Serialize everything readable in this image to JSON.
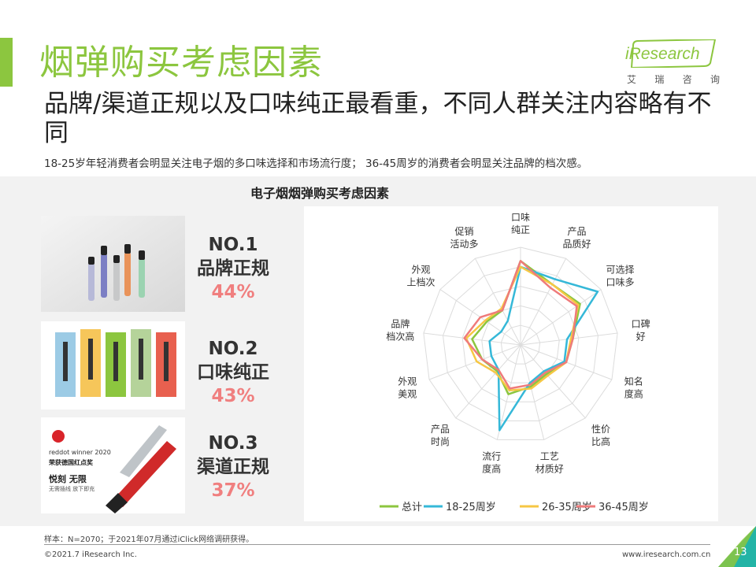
{
  "header": {
    "title": "烟弹购买考虑因素",
    "subtitle": "品牌/渠道正规以及口味纯正最看重，不同人群关注内容略有不同",
    "description": "18-25岁年轻消费者会明显关注电子烟的多口味选择和市场流行度；  36-45周岁的消费者会明显关注品牌的档次感。"
  },
  "logo": {
    "text": "iResearch",
    "cn": [
      "艾",
      "瑞",
      "咨",
      "询"
    ]
  },
  "ranks": [
    {
      "no": "NO.1",
      "name": "品牌正规",
      "pct": "44%"
    },
    {
      "no": "NO.2",
      "name": "口味纯正",
      "pct": "43%"
    },
    {
      "no": "NO.3",
      "name": "渠道正规",
      "pct": "37%"
    }
  ],
  "thumb3": {
    "line1": "reddot winner 2020",
    "line2": "荣获德国红点奖",
    "line3": "悦刻 无限",
    "line4": "无需插线 放下即充"
  },
  "colors": {
    "accent": "#8cc63f",
    "pct": "#f07f7f"
  },
  "chart_data": {
    "type": "radar",
    "title": "电子烟烟弹购买考虑因素",
    "axes": [
      [
        "口味",
        "纯正"
      ],
      [
        "产品",
        "品质好"
      ],
      [
        "可选择",
        "口味多"
      ],
      [
        "口碑",
        "好"
      ],
      [
        "知名",
        "度高"
      ],
      [
        "性价",
        "比高"
      ],
      [
        "工艺",
        "材质好"
      ],
      [
        "流行",
        "度高"
      ],
      [
        "产品",
        "时尚"
      ],
      [
        "外观",
        "美观"
      ],
      [
        "品牌",
        "档次高"
      ],
      [
        "外观",
        "上档次"
      ],
      [
        "促销",
        "活动多"
      ]
    ],
    "range": [
      0,
      50
    ],
    "grid": true,
    "legend_position": "bottom",
    "series": [
      {
        "name": "总计",
        "color": "#8cc63f",
        "values": [
          43,
          35,
          37,
          27,
          25,
          20,
          22,
          26,
          18,
          21,
          25,
          21,
          20
        ]
      },
      {
        "name": "18-25周岁",
        "color": "#35b8d8",
        "values": [
          40,
          38,
          48,
          24,
          24,
          18,
          20,
          45,
          17,
          16,
          16,
          12,
          14
        ]
      },
      {
        "name": "26-35周岁",
        "color": "#f6c744",
        "values": [
          40,
          35,
          36,
          26,
          25,
          21,
          23,
          24,
          19,
          24,
          28,
          22,
          21
        ]
      },
      {
        "name": "36-45周岁",
        "color": "#ef7b7b",
        "values": [
          43,
          33,
          35,
          27,
          25,
          19,
          21,
          23,
          17,
          21,
          29,
          25,
          20
        ]
      }
    ]
  },
  "footer": {
    "note": "样本：N=2070；于2021年07月通过iClick网络调研获得。",
    "copyright": "©2021.7 iResearch Inc.",
    "site": "www.iresearch.com.cn",
    "page": "13"
  }
}
